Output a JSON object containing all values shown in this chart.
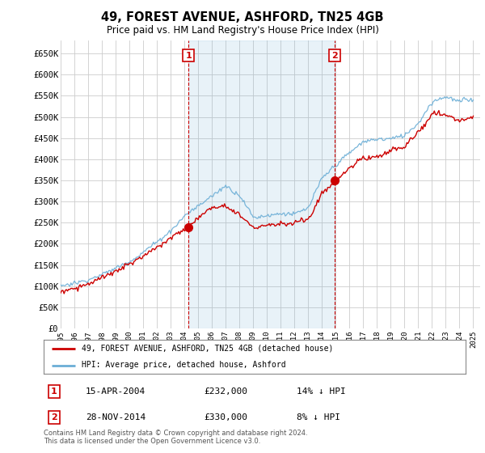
{
  "title": "49, FOREST AVENUE, ASHFORD, TN25 4GB",
  "subtitle": "Price paid vs. HM Land Registry's House Price Index (HPI)",
  "ylim": [
    0,
    680000
  ],
  "yticks": [
    0,
    50000,
    100000,
    150000,
    200000,
    250000,
    300000,
    350000,
    400000,
    450000,
    500000,
    550000,
    600000,
    650000
  ],
  "ytick_labels": [
    "£0",
    "£50K",
    "£100K",
    "£150K",
    "£200K",
    "£250K",
    "£300K",
    "£350K",
    "£400K",
    "£450K",
    "£500K",
    "£550K",
    "£600K",
    "£650K"
  ],
  "hpi_color": "#6baed6",
  "hpi_fill_color": "#d6e8f5",
  "price_color": "#cc0000",
  "marker1_year": 2004.29,
  "marker2_year": 2014.92,
  "marker1_label": "1",
  "marker2_label": "2",
  "marker1_price": 232000,
  "marker2_price": 330000,
  "legend_entry1": "49, FOREST AVENUE, ASHFORD, TN25 4GB (detached house)",
  "legend_entry2": "HPI: Average price, detached house, Ashford",
  "table_row1": [
    "1",
    "15-APR-2004",
    "£232,000",
    "14% ↓ HPI"
  ],
  "table_row2": [
    "2",
    "28-NOV-2014",
    "£330,000",
    "8% ↓ HPI"
  ],
  "footer": "Contains HM Land Registry data © Crown copyright and database right 2024.\nThis data is licensed under the Open Government Licence v3.0.",
  "background_color": "#ffffff",
  "grid_color": "#cccccc",
  "x_start_year": 1995,
  "x_end_year": 2025
}
